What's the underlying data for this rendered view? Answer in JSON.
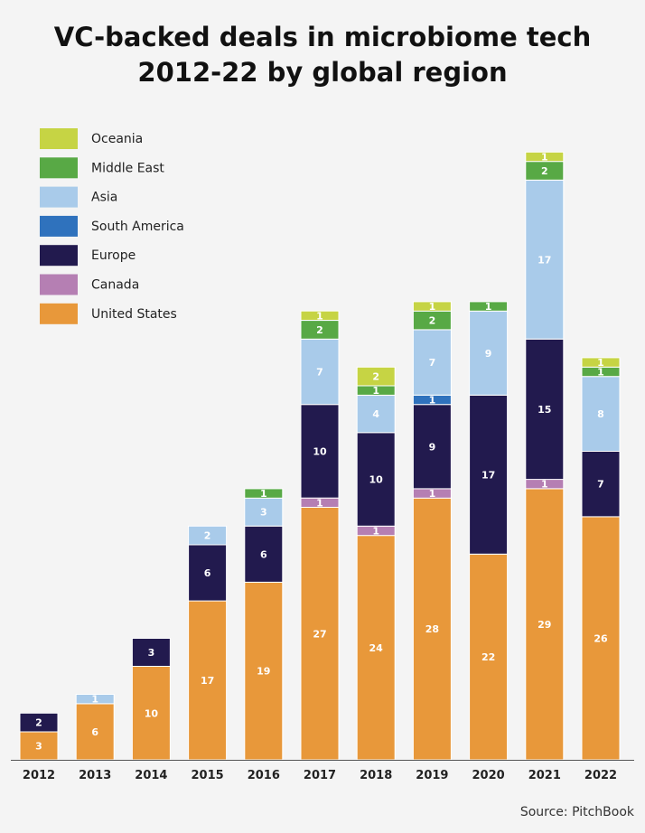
{
  "title_line1": "VC-backed deals in microbiome tech",
  "title_line2": "2012-22 by global region",
  "source": "Source: PitchBook",
  "chart_data": {
    "type": "bar",
    "stacked": true,
    "title": "VC-backed deals in microbiome tech 2012-22 by global region",
    "categories": [
      "2012",
      "2013",
      "2014",
      "2015",
      "2016",
      "2017",
      "2018",
      "2019",
      "2020",
      "2021",
      "2022"
    ],
    "series": [
      {
        "name": "United States",
        "color": "#e8983a",
        "values": [
          3,
          6,
          10,
          17,
          19,
          27,
          24,
          28,
          22,
          29,
          26
        ]
      },
      {
        "name": "Canada",
        "color": "#b57fb3",
        "values": [
          0,
          0,
          0,
          0,
          0,
          1,
          1,
          1,
          0,
          1,
          0
        ]
      },
      {
        "name": "Europe",
        "color": "#221a4e",
        "values": [
          2,
          0,
          3,
          6,
          6,
          10,
          10,
          9,
          17,
          15,
          7
        ]
      },
      {
        "name": "South America",
        "color": "#2f72bd",
        "values": [
          0,
          0,
          0,
          0,
          0,
          0,
          0,
          1,
          0,
          0,
          0
        ]
      },
      {
        "name": "Asia",
        "color": "#a9cbea",
        "values": [
          0,
          1,
          0,
          2,
          3,
          7,
          4,
          7,
          9,
          17,
          8
        ]
      },
      {
        "name": "Middle East",
        "color": "#58a945",
        "values": [
          0,
          0,
          0,
          0,
          1,
          2,
          1,
          2,
          1,
          2,
          1
        ]
      },
      {
        "name": "Oceania",
        "color": "#c6d444",
        "values": [
          0,
          0,
          0,
          0,
          0,
          1,
          2,
          1,
          0,
          1,
          1
        ]
      }
    ],
    "legend_order": [
      "Oceania",
      "Middle East",
      "Asia",
      "South America",
      "Europe",
      "Canada",
      "United States"
    ],
    "legend_position": "top-left",
    "ylim": [
      0,
      65
    ],
    "grid": false,
    "xlabel": "",
    "ylabel": ""
  }
}
